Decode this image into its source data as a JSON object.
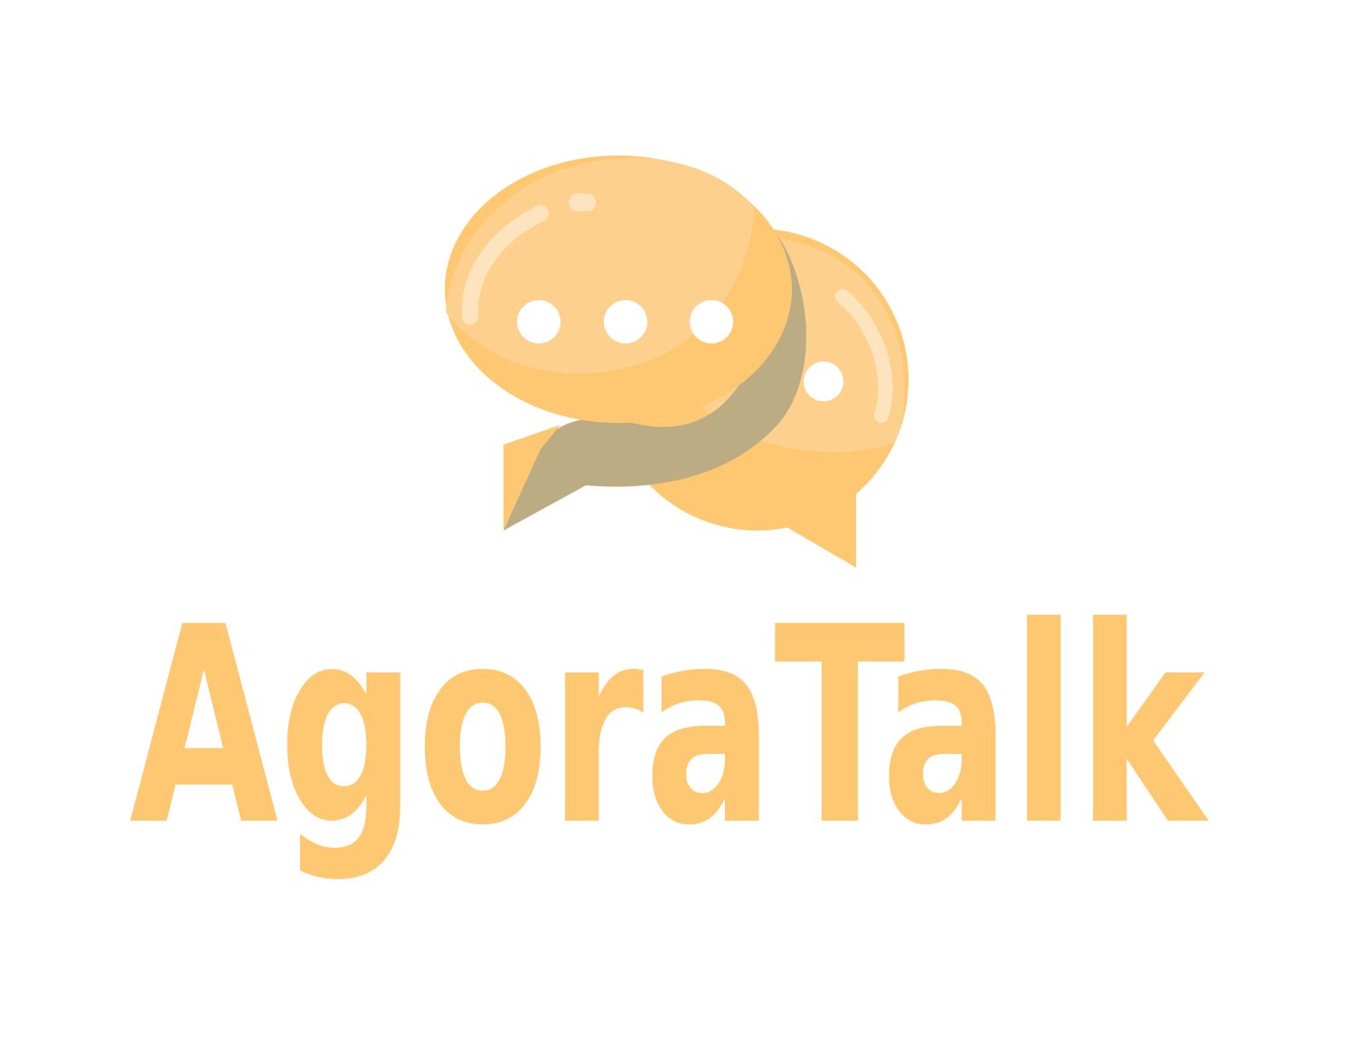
{
  "brand": {
    "name": "AgoraTalk",
    "colors": {
      "primary": "#FEC873",
      "light": "#FDD08D",
      "highlight": "#FEE4BE",
      "shadow": "#BCAC84",
      "background": "#FFFFFF"
    }
  },
  "logo": {
    "icon": "chat-bubbles-icon"
  }
}
